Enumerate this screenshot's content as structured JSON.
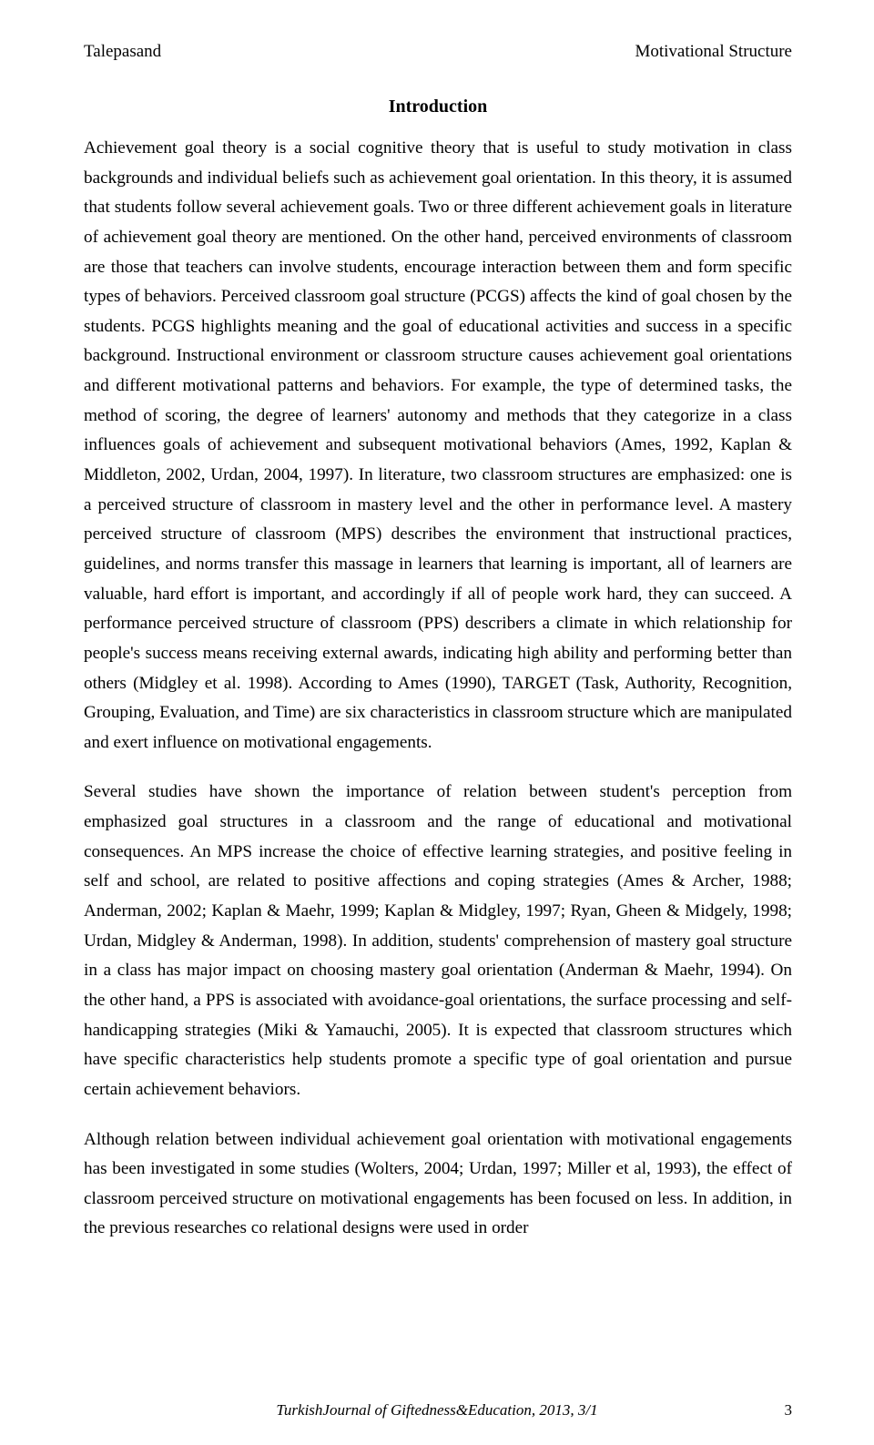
{
  "header": {
    "left": "Talepasand",
    "right": "Motivational Structure"
  },
  "section_heading": "Introduction",
  "paragraphs": [
    "Achievement goal theory is a social cognitive theory that is useful to study motivation in class backgrounds and individual beliefs such as achievement goal orientation. In this theory, it is assumed that students follow several achievement goals. Two or three different achievement goals in literature of achievement goal theory are mentioned. On the other hand, perceived environments of classroom are those that teachers can involve students, encourage interaction between them and form specific types of behaviors. Perceived classroom goal structure (PCGS) affects the kind of goal chosen by the students. PCGS highlights meaning and the goal of educational activities and success in a specific background. Instructional environment or classroom structure causes achievement goal orientations and different motivational patterns and behaviors. For example, the type of determined tasks, the method of scoring, the degree of learners' autonomy and methods that they categorize in a class influences goals of achievement and subsequent motivational behaviors (Ames, 1992, Kaplan & Middleton, 2002, Urdan, 2004, 1997). In literature, two classroom structures are emphasized: one is a perceived structure of classroom in mastery level and the other in performance level. A mastery perceived structure of classroom (MPS) describes the environment that instructional practices, guidelines, and norms transfer this massage in learners that learning is important, all of learners are valuable, hard effort is important, and accordingly if all of people work hard, they can succeed. A performance perceived structure of classroom (PPS) describers a climate in which relationship for people's success means receiving external awards, indicating high ability and performing better than others (Midgley et al. 1998). According to Ames (1990), TARGET (Task, Authority, Recognition, Grouping, Evaluation, and Time) are six characteristics in classroom structure which are manipulated and exert influence on motivational engagements.",
    "Several studies have shown the importance of relation between student's perception from emphasized goal structures in a classroom and the range of educational and motivational consequences. An MPS increase the choice of effective learning strategies, and positive feeling in self and school, are related to positive affections and coping strategies (Ames & Archer, 1988; Anderman, 2002; Kaplan & Maehr, 1999; Kaplan & Midgley, 1997; Ryan, Gheen & Midgely, 1998; Urdan, Midgley & Anderman, 1998). In addition, students' comprehension of mastery goal structure in a class has major impact on choosing mastery goal orientation (Anderman & Maehr, 1994). On the other hand, a PPS is associated with avoidance-goal orientations, the surface processing and self-handicapping strategies (Miki & Yamauchi, 2005). It is expected that classroom structures which have specific characteristics help students promote a specific type of goal orientation and pursue certain achievement behaviors.",
    "Although relation between individual achievement goal orientation with motivational engagements has been investigated in some studies (Wolters, 2004; Urdan, 1997; Miller et al, 1993), the effect of classroom perceived structure on motivational engagements has been focused on less. In addition, in the previous researches co relational designs were used in order"
  ],
  "footer": {
    "journal": "TurkishJournal of Giftedness&Education, 2013, 3/1",
    "page_number": "3"
  }
}
